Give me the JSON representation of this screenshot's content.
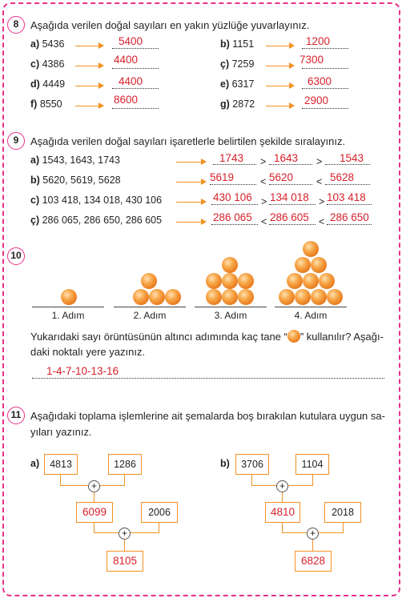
{
  "q8": {
    "number": "8",
    "text": "Aşağıda verilen doğal sayıları en yakın yüzlüğe yuvarlayınız.",
    "items": [
      {
        "label": "a)",
        "value": "5436",
        "answer": "5400"
      },
      {
        "label": "b)",
        "value": "1151",
        "answer": "1200"
      },
      {
        "label": "c)",
        "value": "4386",
        "answer": "4400"
      },
      {
        "label": "ç)",
        "value": "7259",
        "answer": "7300"
      },
      {
        "label": "d)",
        "value": "4449",
        "answer": "4400"
      },
      {
        "label": "e)",
        "value": "6317",
        "answer": "6300"
      },
      {
        "label": "f)",
        "value": "8550",
        "answer": "8600"
      },
      {
        "label": "g)",
        "value": "2872",
        "answer": "2900"
      }
    ]
  },
  "q9": {
    "number": "9",
    "text": "Aşağıda verilen doğal sayıları işaretlerle belirtilen şekilde sıralayınız.",
    "items": [
      {
        "label": "a)",
        "values": "1543, 1643, 1743",
        "answers": [
          "1743",
          "1643",
          "1543"
        ],
        "signs": [
          ">",
          ">"
        ]
      },
      {
        "label": "b)",
        "values": "5620, 5619, 5628",
        "answers": [
          "5619",
          "5620",
          "5628"
        ],
        "signs": [
          "<",
          "<"
        ]
      },
      {
        "label": "c)",
        "values": "103 418, 134 018, 430 106",
        "answers": [
          "430 106",
          "134 018",
          "103 418"
        ],
        "signs": [
          ">",
          ">"
        ]
      },
      {
        "label": "ç)",
        "values": "286 065, 286 650, 286 605",
        "answers": [
          "286 065",
          "286 605",
          "286 650"
        ],
        "signs": [
          "<",
          "<"
        ]
      }
    ]
  },
  "q10": {
    "number": "10",
    "steps": [
      "1. Adım",
      "2. Adım",
      "3. Adım",
      "4. Adım"
    ],
    "text_before": "Yukarıdaki sayı örüntüsünün altıncı adımında kaç tane “",
    "text_after": "” kullanılır? Aşağı-",
    "text_line2": "daki noktalı yere yazınız.",
    "answer": "1-4-7-10-13-16"
  },
  "q11": {
    "number": "11",
    "text_line1": "Aşağıdaki toplama işlemlerine ait şemalarda boş bırakılan kutulara uygun sa-",
    "text_line2": "yıları yazınız.",
    "plus": "+",
    "a": {
      "label": "a)",
      "top_left": "4813",
      "top_right": "1286",
      "mid": "6099",
      "side": "2006",
      "result": "8105"
    },
    "b": {
      "label": "b)",
      "top_left": "3706",
      "top_right": "1104",
      "mid": "4810",
      "side": "2018",
      "result": "6828"
    }
  }
}
